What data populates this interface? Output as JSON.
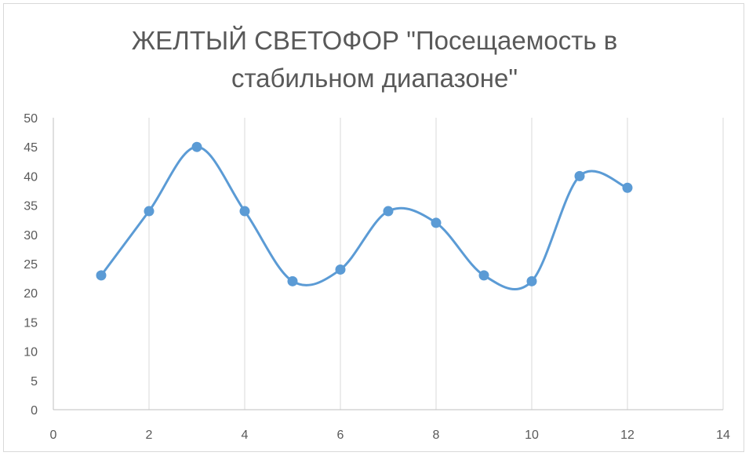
{
  "chart_data": {
    "type": "scatter",
    "title_lines": [
      "ЖЕЛТЫЙ СВЕТОФОР \"Посещаемость в",
      "стабильном диапазоне\""
    ],
    "xlabel": "",
    "ylabel": "",
    "xlim": [
      0,
      14
    ],
    "ylim": [
      0,
      50
    ],
    "xticks": [
      0,
      2,
      4,
      6,
      8,
      10,
      12,
      14
    ],
    "yticks": [
      0,
      5,
      10,
      15,
      20,
      25,
      30,
      35,
      40,
      45,
      50
    ],
    "grid": "vertical",
    "smooth": true,
    "series": [
      {
        "x": [
          1,
          2,
          3,
          4,
          5,
          6,
          7,
          8,
          9,
          10,
          11,
          12
        ],
        "y": [
          23,
          34,
          45,
          34,
          22,
          24,
          34,
          32,
          23,
          22,
          40,
          38
        ],
        "color": "#5b9bd5"
      }
    ]
  }
}
